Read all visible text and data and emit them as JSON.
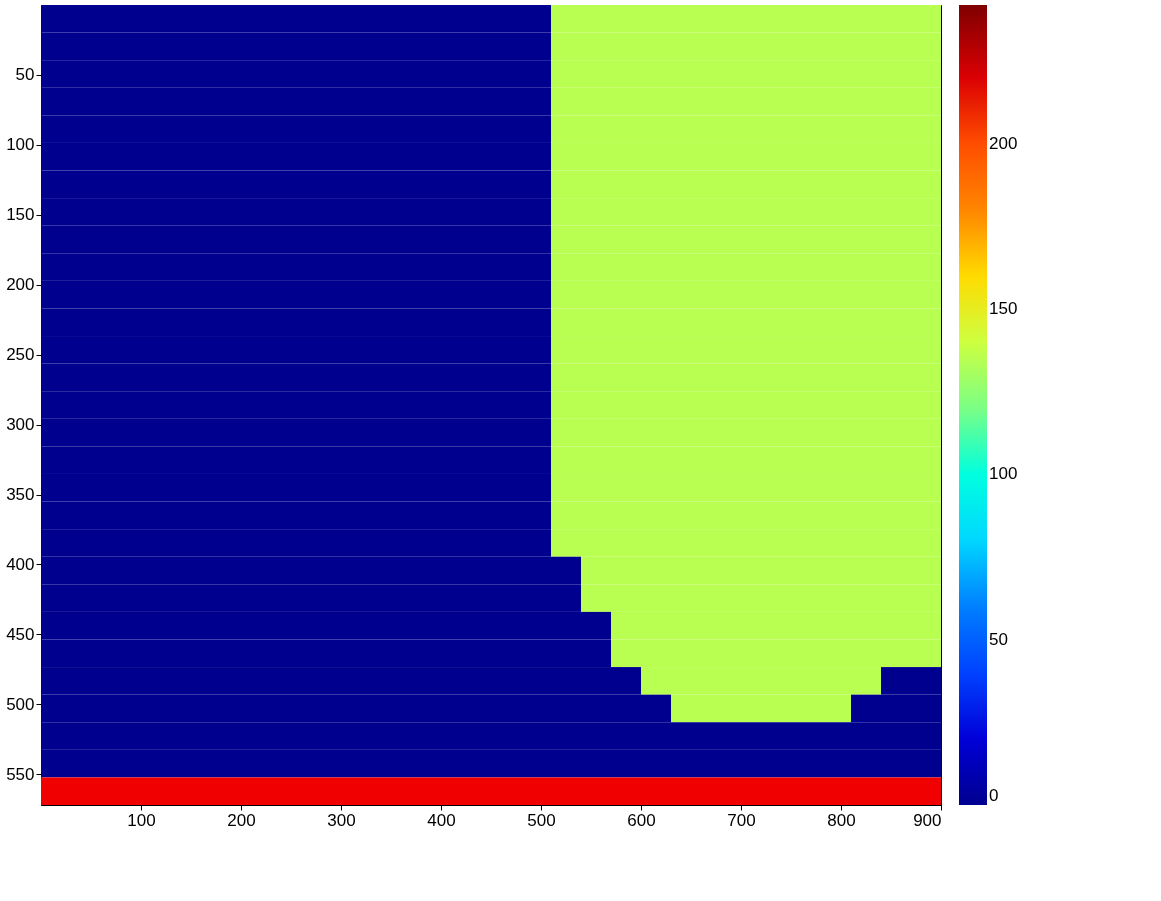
{
  "chart_data": {
    "type": "heatmap",
    "xlim": [
      0,
      900
    ],
    "ylim": [
      572,
      0
    ],
    "xticks": [
      100,
      200,
      300,
      400,
      500,
      600,
      700,
      800,
      900
    ],
    "yticks": [
      50,
      100,
      150,
      200,
      250,
      300,
      350,
      400,
      450,
      500,
      550
    ],
    "clim": [
      0,
      242
    ],
    "cticks": [
      0,
      50,
      100,
      150,
      200
    ],
    "grid": false,
    "cells": [
      [
        0,
        0,
        0,
        0,
        0,
        0,
        0,
        0,
        0,
        0,
        0,
        0,
        0,
        0,
        0,
        0,
        0,
        135,
        135,
        135,
        135,
        135,
        135,
        135,
        135,
        135,
        135,
        135,
        135,
        135
      ],
      [
        0,
        0,
        0,
        0,
        0,
        0,
        0,
        0,
        0,
        0,
        0,
        0,
        0,
        0,
        0,
        0,
        0,
        135,
        135,
        135,
        135,
        135,
        135,
        135,
        135,
        135,
        135,
        135,
        135,
        135
      ],
      [
        0,
        0,
        0,
        0,
        0,
        0,
        0,
        0,
        0,
        0,
        0,
        0,
        0,
        0,
        0,
        0,
        0,
        135,
        135,
        135,
        135,
        135,
        135,
        135,
        135,
        135,
        135,
        135,
        135,
        135
      ],
      [
        0,
        0,
        0,
        0,
        0,
        0,
        0,
        0,
        0,
        0,
        0,
        0,
        0,
        0,
        0,
        0,
        0,
        135,
        135,
        135,
        135,
        135,
        135,
        135,
        135,
        135,
        135,
        135,
        135,
        135
      ],
      [
        0,
        0,
        0,
        0,
        0,
        0,
        0,
        0,
        0,
        0,
        0,
        0,
        0,
        0,
        0,
        0,
        0,
        135,
        135,
        135,
        135,
        135,
        135,
        135,
        135,
        135,
        135,
        135,
        135,
        135
      ],
      [
        0,
        0,
        0,
        0,
        0,
        0,
        0,
        0,
        0,
        0,
        0,
        0,
        0,
        0,
        0,
        0,
        0,
        135,
        135,
        135,
        135,
        135,
        135,
        135,
        135,
        135,
        135,
        135,
        135,
        135
      ],
      [
        0,
        0,
        0,
        0,
        0,
        0,
        0,
        0,
        0,
        0,
        0,
        0,
        0,
        0,
        0,
        0,
        0,
        135,
        135,
        135,
        135,
        135,
        135,
        135,
        135,
        135,
        135,
        135,
        135,
        135
      ],
      [
        0,
        0,
        0,
        0,
        0,
        0,
        0,
        0,
        0,
        0,
        0,
        0,
        0,
        0,
        0,
        0,
        0,
        135,
        135,
        135,
        135,
        135,
        135,
        135,
        135,
        135,
        135,
        135,
        135,
        135
      ],
      [
        0,
        0,
        0,
        0,
        0,
        0,
        0,
        0,
        0,
        0,
        0,
        0,
        0,
        0,
        0,
        0,
        0,
        135,
        135,
        135,
        135,
        135,
        135,
        135,
        135,
        135,
        135,
        135,
        135,
        135
      ],
      [
        0,
        0,
        0,
        0,
        0,
        0,
        0,
        0,
        0,
        0,
        0,
        0,
        0,
        0,
        0,
        0,
        0,
        135,
        135,
        135,
        135,
        135,
        135,
        135,
        135,
        135,
        135,
        135,
        135,
        135
      ],
      [
        0,
        0,
        0,
        0,
        0,
        0,
        0,
        0,
        0,
        0,
        0,
        0,
        0,
        0,
        0,
        0,
        0,
        135,
        135,
        135,
        135,
        135,
        135,
        135,
        135,
        135,
        135,
        135,
        135,
        135
      ],
      [
        0,
        0,
        0,
        0,
        0,
        0,
        0,
        0,
        0,
        0,
        0,
        0,
        0,
        0,
        0,
        0,
        0,
        135,
        135,
        135,
        135,
        135,
        135,
        135,
        135,
        135,
        135,
        135,
        135,
        135
      ],
      [
        0,
        0,
        0,
        0,
        0,
        0,
        0,
        0,
        0,
        0,
        0,
        0,
        0,
        0,
        0,
        0,
        0,
        135,
        135,
        135,
        135,
        135,
        135,
        135,
        135,
        135,
        135,
        135,
        135,
        135
      ],
      [
        0,
        0,
        0,
        0,
        0,
        0,
        0,
        0,
        0,
        0,
        0,
        0,
        0,
        0,
        0,
        0,
        0,
        135,
        135,
        135,
        135,
        135,
        135,
        135,
        135,
        135,
        135,
        135,
        135,
        135
      ],
      [
        0,
        0,
        0,
        0,
        0,
        0,
        0,
        0,
        0,
        0,
        0,
        0,
        0,
        0,
        0,
        0,
        0,
        135,
        135,
        135,
        135,
        135,
        135,
        135,
        135,
        135,
        135,
        135,
        135,
        135
      ],
      [
        0,
        0,
        0,
        0,
        0,
        0,
        0,
        0,
        0,
        0,
        0,
        0,
        0,
        0,
        0,
        0,
        0,
        135,
        135,
        135,
        135,
        135,
        135,
        135,
        135,
        135,
        135,
        135,
        135,
        135
      ],
      [
        0,
        0,
        0,
        0,
        0,
        0,
        0,
        0,
        0,
        0,
        0,
        0,
        0,
        0,
        0,
        0,
        0,
        135,
        135,
        135,
        135,
        135,
        135,
        135,
        135,
        135,
        135,
        135,
        135,
        135
      ],
      [
        0,
        0,
        0,
        0,
        0,
        0,
        0,
        0,
        0,
        0,
        0,
        0,
        0,
        0,
        0,
        0,
        0,
        135,
        135,
        135,
        135,
        135,
        135,
        135,
        135,
        135,
        135,
        135,
        135,
        135
      ],
      [
        0,
        0,
        0,
        0,
        0,
        0,
        0,
        0,
        0,
        0,
        0,
        0,
        0,
        0,
        0,
        0,
        0,
        135,
        135,
        135,
        135,
        135,
        135,
        135,
        135,
        135,
        135,
        135,
        135,
        135
      ],
      [
        0,
        0,
        0,
        0,
        0,
        0,
        0,
        0,
        0,
        0,
        0,
        0,
        0,
        0,
        0,
        0,
        0,
        135,
        135,
        135,
        135,
        135,
        135,
        135,
        135,
        135,
        135,
        135,
        135,
        135
      ],
      [
        0,
        0,
        0,
        0,
        0,
        0,
        0,
        0,
        0,
        0,
        0,
        0,
        0,
        0,
        0,
        0,
        0,
        0,
        135,
        135,
        135,
        135,
        135,
        135,
        135,
        135,
        135,
        135,
        135,
        135
      ],
      [
        0,
        0,
        0,
        0,
        0,
        0,
        0,
        0,
        0,
        0,
        0,
        0,
        0,
        0,
        0,
        0,
        0,
        0,
        135,
        135,
        135,
        135,
        135,
        135,
        135,
        135,
        135,
        135,
        135,
        135
      ],
      [
        0,
        0,
        0,
        0,
        0,
        0,
        0,
        0,
        0,
        0,
        0,
        0,
        0,
        0,
        0,
        0,
        0,
        0,
        0,
        135,
        135,
        135,
        135,
        135,
        135,
        135,
        135,
        135,
        135,
        135
      ],
      [
        0,
        0,
        0,
        0,
        0,
        0,
        0,
        0,
        0,
        0,
        0,
        0,
        0,
        0,
        0,
        0,
        0,
        0,
        0,
        135,
        135,
        135,
        135,
        135,
        135,
        135,
        135,
        135,
        135,
        135
      ],
      [
        0,
        0,
        0,
        0,
        0,
        0,
        0,
        0,
        0,
        0,
        0,
        0,
        0,
        0,
        0,
        0,
        0,
        0,
        0,
        0,
        135,
        135,
        135,
        135,
        135,
        135,
        135,
        135,
        0,
        0
      ],
      [
        0,
        0,
        0,
        0,
        0,
        0,
        0,
        0,
        0,
        0,
        0,
        0,
        0,
        0,
        0,
        0,
        0,
        0,
        0,
        0,
        0,
        135,
        135,
        135,
        135,
        135,
        135,
        0,
        0,
        0
      ],
      [
        0,
        0,
        0,
        0,
        0,
        0,
        0,
        0,
        0,
        0,
        0,
        0,
        0,
        0,
        0,
        0,
        0,
        0,
        0,
        0,
        0,
        0,
        0,
        0,
        0,
        0,
        0,
        0,
        0,
        0
      ],
      [
        0,
        0,
        0,
        0,
        0,
        0,
        0,
        0,
        0,
        0,
        0,
        0,
        0,
        0,
        0,
        0,
        0,
        0,
        0,
        0,
        0,
        0,
        0,
        0,
        0,
        0,
        0,
        0,
        0,
        0
      ],
      [
        215,
        215,
        215,
        215,
        215,
        215,
        215,
        215,
        215,
        215,
        215,
        215,
        215,
        215,
        215,
        215,
        215,
        215,
        215,
        215,
        215,
        215,
        215,
        215,
        215,
        215,
        215,
        215,
        215,
        215
      ]
    ]
  }
}
